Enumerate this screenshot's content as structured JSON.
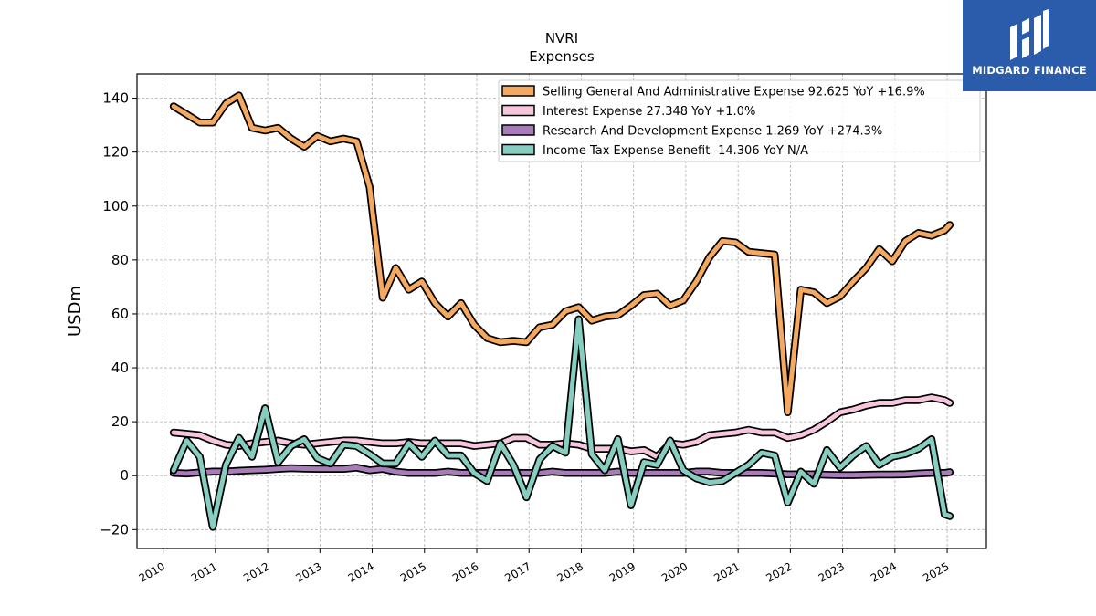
{
  "header": {
    "title": "NVRI",
    "subtitle": "Expenses"
  },
  "brand": {
    "name": "MIDGARD FINANCE",
    "logo_icon": "midgard-m-logo-icon",
    "color": "#2b5cab"
  },
  "chart_data": {
    "type": "line",
    "title": "NVRI",
    "subtitle": "Expenses",
    "xlabel": "",
    "ylabel": "USDm",
    "xlim": [
      2009.5,
      2025.75
    ],
    "ylim": [
      -27,
      149
    ],
    "x_ticks": [
      2010,
      2011,
      2012,
      2013,
      2014,
      2015,
      2016,
      2017,
      2018,
      2019,
      2020,
      2021,
      2022,
      2023,
      2024,
      2025
    ],
    "x_tick_labels": [
      "2010",
      "2011",
      "2012",
      "2013",
      "2014",
      "2015",
      "2016",
      "2017",
      "2018",
      "2019",
      "2020",
      "2021",
      "2022",
      "2023",
      "2024",
      "2025"
    ],
    "y_ticks": [
      -20,
      0,
      20,
      40,
      60,
      80,
      100,
      120,
      140
    ],
    "y_tick_labels": [
      "−20",
      "0",
      "20",
      "40",
      "60",
      "80",
      "100",
      "120",
      "140"
    ],
    "grid": true,
    "legend_position": "top-right",
    "x": [
      2010.2,
      2010.45,
      2010.7,
      2010.95,
      2011.2,
      2011.45,
      2011.7,
      2011.95,
      2012.2,
      2012.45,
      2012.7,
      2012.95,
      2013.2,
      2013.45,
      2013.7,
      2013.95,
      2014.2,
      2014.45,
      2014.7,
      2014.95,
      2015.2,
      2015.45,
      2015.7,
      2015.95,
      2016.2,
      2016.45,
      2016.7,
      2016.95,
      2017.2,
      2017.45,
      2017.7,
      2017.95,
      2018.2,
      2018.45,
      2018.7,
      2018.95,
      2019.2,
      2019.45,
      2019.7,
      2019.95,
      2020.2,
      2020.45,
      2020.7,
      2020.95,
      2021.2,
      2021.45,
      2021.7,
      2021.95,
      2022.2,
      2022.45,
      2022.7,
      2022.95,
      2023.2,
      2023.45,
      2023.7,
      2023.95,
      2024.2,
      2024.45,
      2024.7,
      2024.95,
      2025.05
    ],
    "series": [
      {
        "name": "Selling General And Administrative Expense",
        "legend_label": "Selling General And Administrative Expense  92.625 YoY +16.9%",
        "color": "#f5a960",
        "values": [
          137,
          134,
          131,
          131,
          138,
          141,
          129,
          128,
          129,
          125,
          122,
          126,
          124,
          125,
          124,
          107,
          66,
          77,
          69,
          72,
          64,
          59,
          64,
          56,
          51,
          49.5,
          50,
          49.5,
          55,
          56,
          61,
          62.5,
          57.5,
          59,
          59.5,
          63,
          67,
          67.5,
          63,
          65,
          72,
          81,
          87,
          86.5,
          83,
          82.5,
          82,
          23.5,
          69,
          68,
          64,
          66.5,
          72,
          77,
          84,
          79.5,
          87,
          90,
          89,
          91,
          93
        ]
      },
      {
        "name": "Interest Expense",
        "legend_label": "Interest Expense  27.348 YoY +1.0%",
        "color": "#f7c6dc",
        "values": [
          16,
          15.5,
          15,
          13,
          11.5,
          11,
          12,
          12.5,
          13,
          12,
          11.5,
          12,
          12.5,
          13,
          13,
          12.5,
          12,
          12,
          12.5,
          12,
          12,
          12,
          12,
          11,
          11.5,
          12,
          14,
          14,
          11.5,
          11.5,
          12,
          11.5,
          10,
          10,
          10,
          9,
          9.5,
          7,
          12,
          11.5,
          12.5,
          15,
          15.5,
          16,
          17,
          16,
          16,
          14,
          15,
          17,
          20,
          23.5,
          24.5,
          26,
          27,
          27,
          28,
          28,
          29,
          28,
          27
        ]
      },
      {
        "name": "Research And Development Expense",
        "legend_label": "Research And Development Expense  1.269 YoY +274.3%",
        "color": "#a87cb8",
        "values": [
          1,
          0.8,
          1.2,
          1.5,
          1.5,
          1.8,
          2,
          2.2,
          2.5,
          2.8,
          2.6,
          2.5,
          2.5,
          2.5,
          3,
          2,
          2.5,
          1.5,
          1,
          1,
          1,
          1.5,
          1,
          1,
          1,
          1,
          1,
          1,
          1,
          1.5,
          1,
          1,
          1,
          1,
          1.5,
          1,
          1,
          1,
          1,
          1,
          1.5,
          1.5,
          1,
          1,
          1,
          1,
          0.8,
          0.5,
          0.5,
          0.5,
          0.3,
          0.2,
          0.2,
          0.3,
          0.4,
          0.4,
          0.5,
          0.8,
          1,
          1,
          1.3
        ]
      },
      {
        "name": "Income Tax Expense Benefit",
        "legend_label": "Income Tax Expense Benefit  -14.306 YoY N/A",
        "color": "#86cfc0",
        "values": [
          2,
          13,
          7,
          -19,
          4,
          14,
          7,
          25,
          5,
          11,
          13.5,
          6.5,
          4.5,
          11.5,
          11,
          8,
          4.5,
          4.5,
          12,
          7,
          13,
          7.5,
          7.5,
          1,
          -2,
          12,
          4,
          -8,
          6,
          11,
          8.5,
          58,
          8,
          2,
          13.5,
          -11,
          5,
          4,
          13,
          2,
          -1,
          -2.5,
          -2,
          1,
          4,
          8.5,
          7.5,
          -10,
          1.5,
          -3,
          9.5,
          3,
          7.5,
          11,
          4,
          7,
          8,
          10,
          13.5,
          -14.3,
          -15
        ]
      }
    ]
  }
}
